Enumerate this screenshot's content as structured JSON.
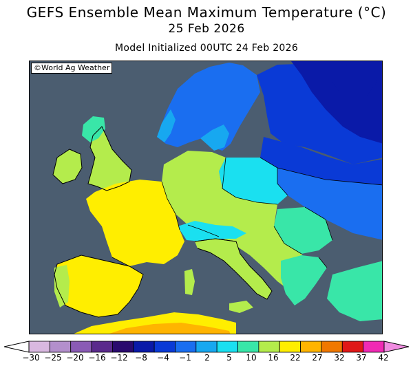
{
  "header": {
    "title": "GEFS Ensemble Mean Maximum Temperature (°C)",
    "date": "25 Feb 2026",
    "init": "Model Initialized 00UTC 24 Feb 2026"
  },
  "map": {
    "credit": "©World Ag Weather",
    "sea_color": "#4b5d70",
    "border_color": "#000000"
  },
  "legend": {
    "ticks": [
      "-30",
      "-25",
      "-20",
      "-16",
      "-12",
      "-8",
      "-4",
      "-1",
      "2",
      "5",
      "10",
      "16",
      "22",
      "27",
      "32",
      "37",
      "42"
    ],
    "colors": [
      "#d9b8e0",
      "#b38fcc",
      "#8a5bb5",
      "#5a2a8c",
      "#2a0a6e",
      "#0a1aa8",
      "#0a3ad6",
      "#1a6ef0",
      "#17a8f0",
      "#1ae0f0",
      "#39e6a8",
      "#b4ec4c",
      "#ffee00",
      "#ffb400",
      "#f07800",
      "#e01818",
      "#f02ab4"
    ],
    "left_arrow_color": "#ffffff",
    "right_arrow_color": "#f08ce0"
  }
}
